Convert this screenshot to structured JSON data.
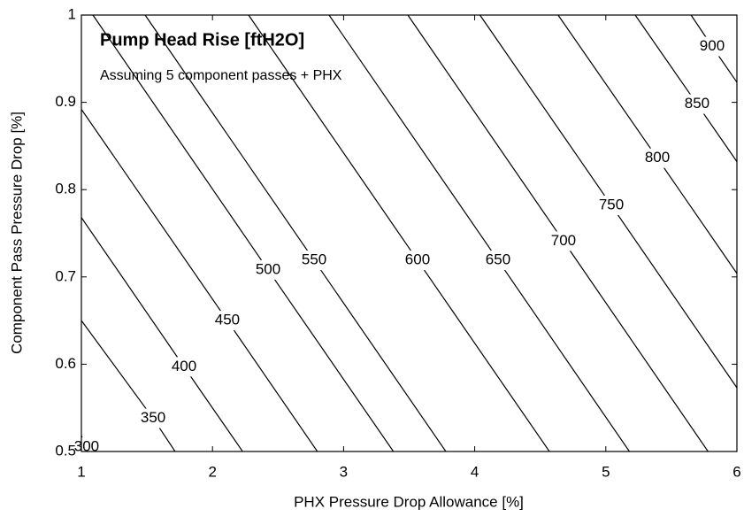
{
  "chart_data": {
    "type": "contour",
    "title": "Pump Head Rise [ftH2O]",
    "subtitle": "Assuming 5 component passes + PHX",
    "x_label": "PHX Pressure Drop Allowance [%]",
    "y_label": "Component Pass Pressure Drop [%]",
    "xlim": [
      1,
      6
    ],
    "ylim": [
      0.5,
      1
    ],
    "xticks": [
      1,
      2,
      3,
      4,
      5,
      6
    ],
    "yticks": [
      0.5,
      0.6,
      0.7,
      0.8,
      0.9,
      1
    ],
    "color": "#000000",
    "contours": [
      {
        "level": 300,
        "x": [
          1,
          1.04,
          1.088
        ],
        "y": [
          0.518,
          0.505,
          0.5
        ]
      },
      {
        "level": 350,
        "x": [
          1,
          1.547,
          1.715
        ],
        "y": [
          0.65,
          0.538,
          0.5
        ]
      },
      {
        "level": 400,
        "x": [
          1,
          1.783,
          2.23
        ],
        "y": [
          0.768,
          0.597,
          0.5
        ]
      },
      {
        "level": 450,
        "x": [
          1,
          2.113,
          2.8
        ],
        "y": [
          0.892,
          0.65,
          0.5
        ]
      },
      {
        "level": 500,
        "x": [
          1.088,
          2.424,
          3.38
        ],
        "y": [
          1,
          0.708,
          0.5
        ]
      },
      {
        "level": 550,
        "x": [
          1.486,
          2.775,
          3.78
        ],
        "y": [
          1,
          0.719,
          0.5
        ]
      },
      {
        "level": 600,
        "x": [
          2.275,
          3.564,
          4.57
        ],
        "y": [
          1,
          0.719,
          0.5
        ]
      },
      {
        "level": 650,
        "x": [
          2.889,
          4.178,
          5.18
        ],
        "y": [
          1,
          0.719,
          0.5
        ]
      },
      {
        "level": 700,
        "x": [
          3.49,
          4.677,
          5.78
        ],
        "y": [
          1,
          0.741,
          0.5
        ]
      },
      {
        "level": 750,
        "x": [
          4.04,
          5.042,
          6
        ],
        "y": [
          1,
          0.782,
          0.573
        ]
      },
      {
        "level": 800,
        "x": [
          4.636,
          5.393,
          6
        ],
        "y": [
          1,
          0.836,
          0.704
        ]
      },
      {
        "level": 850,
        "x": [
          5.224,
          5.696,
          6
        ],
        "y": [
          1,
          0.898,
          0.832
        ]
      },
      {
        "level": 900,
        "x": [
          5.65,
          5.811,
          6
        ],
        "y": [
          1,
          0.964,
          0.923
        ]
      }
    ]
  }
}
